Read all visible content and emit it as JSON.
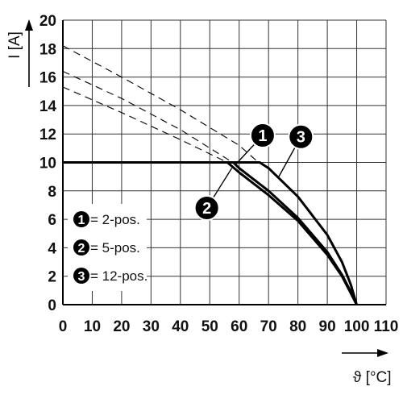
{
  "chart_data": {
    "type": "line",
    "xlabel": "ϑ [°C]",
    "ylabel": "I [A]",
    "xlim": [
      0,
      110
    ],
    "ylim": [
      0,
      20
    ],
    "x_ticks": [
      "0",
      "10",
      "20",
      "30",
      "40",
      "50",
      "60",
      "70",
      "80",
      "90",
      "100",
      "110"
    ],
    "y_ticks": [
      "0",
      "2",
      "4",
      "6",
      "8",
      "10",
      "12",
      "14",
      "16",
      "18",
      "20"
    ],
    "grid": true,
    "legend": [
      {
        "marker": "1",
        "label": "= 2-pos."
      },
      {
        "marker": "2",
        "label": "= 5-pos."
      },
      {
        "marker": "3",
        "label": "= 12-pos."
      }
    ],
    "series": [
      {
        "marker": "1",
        "points": [
          [
            0,
            10
          ],
          [
            58,
            10
          ],
          [
            60,
            9.6
          ],
          [
            70,
            8.0
          ],
          [
            80,
            6.1
          ],
          [
            90,
            3.7
          ],
          [
            95,
            2.1
          ],
          [
            98,
            0.9
          ],
          [
            100,
            0
          ]
        ],
        "dashed": [
          [
            0,
            16.4
          ],
          [
            20,
            14.5
          ],
          [
            40,
            12.3
          ],
          [
            57,
            10.1
          ]
        ]
      },
      {
        "marker": "2",
        "points": [
          [
            0,
            10
          ],
          [
            56,
            10
          ],
          [
            60,
            9.3
          ],
          [
            70,
            7.7
          ],
          [
            80,
            5.9
          ],
          [
            90,
            3.5
          ],
          [
            95,
            2.0
          ],
          [
            98,
            0.8
          ],
          [
            100,
            0
          ]
        ],
        "dashed": [
          [
            0,
            15.3
          ],
          [
            20,
            13.5
          ],
          [
            40,
            11.6
          ],
          [
            55,
            10.1
          ]
        ]
      },
      {
        "marker": "3",
        "points": [
          [
            0,
            10
          ],
          [
            67,
            10
          ],
          [
            70,
            9.6
          ],
          [
            80,
            7.6
          ],
          [
            90,
            4.9
          ],
          [
            95,
            3.0
          ],
          [
            98,
            1.4
          ],
          [
            100,
            0
          ]
        ],
        "dashed": [
          [
            0,
            18.2
          ],
          [
            20,
            16.0
          ],
          [
            40,
            13.7
          ],
          [
            60,
            11.2
          ],
          [
            66,
            10.1
          ]
        ]
      }
    ],
    "annotations": [
      {
        "marker": "1",
        "x": 68,
        "y": 11.9,
        "points_to": [
          59,
          9.9
        ]
      },
      {
        "marker": "2",
        "x": 49,
        "y": 6.8,
        "points_to": [
          57.5,
          9.6
        ]
      },
      {
        "marker": "3",
        "x": 81,
        "y": 11.8,
        "points_to": [
          73.5,
          9.0
        ]
      }
    ]
  }
}
